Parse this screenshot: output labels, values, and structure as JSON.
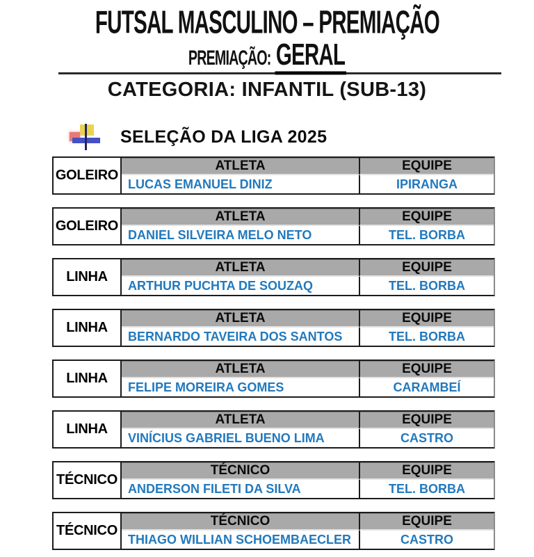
{
  "header": {
    "title": "FUTSAL MASCULINO – PREMIAÇÃO",
    "premiacao_label": "PREMIAÇÃO:",
    "premiacao_value": "GERAL",
    "category": "CATEGORIA: INFANTIL (SUB-13)"
  },
  "section": {
    "title": "SELEÇÃO DA LIGA 2025",
    "logo": "liga-cross-logo"
  },
  "colors": {
    "header_bg": "#a9a9a9",
    "data_blue": "#2279bd",
    "border_dark": "#1c1c1c",
    "logo_yellow": "#e9d44e",
    "logo_pink": "#e77a76",
    "logo_blue": "#4550c5"
  },
  "tables": [
    {
      "role": "GOLEIRO",
      "person_header": "ATLETA",
      "team_header": "EQUIPE",
      "person": "LUCAS EMANUEL DINIZ",
      "team": "IPIRANGA"
    },
    {
      "role": "GOLEIRO",
      "person_header": "ATLETA",
      "team_header": "EQUIPE",
      "person": "DANIEL SILVEIRA MELO NETO",
      "team": "TEL. BORBA"
    },
    {
      "role": "LINHA",
      "person_header": "ATLETA",
      "team_header": "EQUIPE",
      "person": "ARTHUR PUCHTA DE SOUZAQ",
      "team": "TEL. BORBA"
    },
    {
      "role": "LINHA",
      "person_header": "ATLETA",
      "team_header": "EQUIPE",
      "person": "BERNARDO TAVEIRA DOS SANTOS",
      "team": "TEL. BORBA"
    },
    {
      "role": "LINHA",
      "person_header": "ATLETA",
      "team_header": "EQUIPE",
      "person": "FELIPE MOREIRA GOMES",
      "team": "CARAMBEÍ"
    },
    {
      "role": "LINHA",
      "person_header": "ATLETA",
      "team_header": "EQUIPE",
      "person": "VINÍCIUS GABRIEL BUENO LIMA",
      "team": "CASTRO"
    },
    {
      "role": "TÉCNICO",
      "person_header": "TÉCNICO",
      "team_header": "EQUIPE",
      "person": "ANDERSON FILETI DA SILVA",
      "team": "TEL. BORBA"
    },
    {
      "role": "TÉCNICO",
      "person_header": "TÉCNICO",
      "team_header": "EQUIPE",
      "person": "THIAGO WILLIAN SCHOEMBAECLER",
      "team": "CASTRO"
    }
  ]
}
